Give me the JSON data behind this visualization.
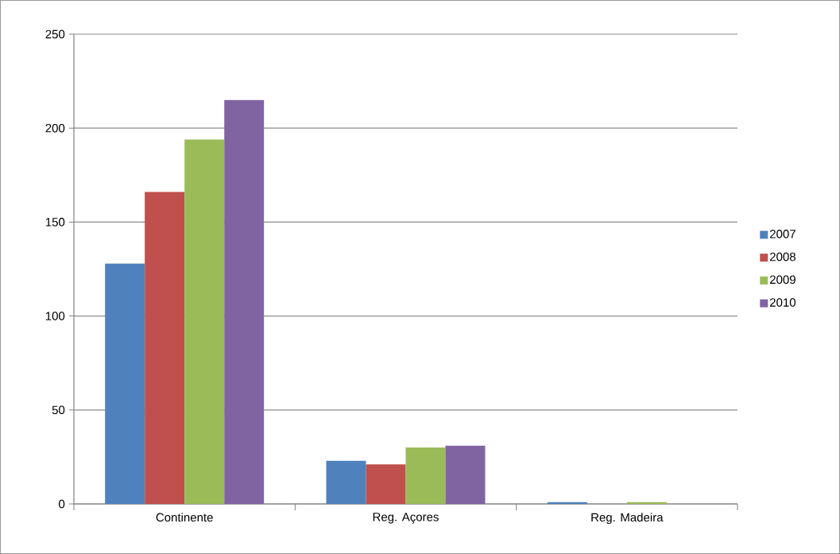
{
  "chart_data": {
    "type": "bar",
    "categories": [
      "Continente",
      "Reg. Açores",
      "Reg. Madeira"
    ],
    "series": [
      {
        "name": "2007",
        "color": "#4f81bd",
        "values": [
          128,
          23,
          1
        ]
      },
      {
        "name": "2008",
        "color": "#c0504d",
        "values": [
          166,
          21,
          0
        ]
      },
      {
        "name": "2009",
        "color": "#9bbb59",
        "values": [
          194,
          30,
          1
        ]
      },
      {
        "name": "2010",
        "color": "#8064a2",
        "values": [
          215,
          31,
          0
        ]
      }
    ],
    "ylim": [
      0,
      250
    ],
    "yticks": [
      0,
      50,
      100,
      150,
      200,
      250
    ],
    "grid": "y",
    "legend": "right"
  }
}
